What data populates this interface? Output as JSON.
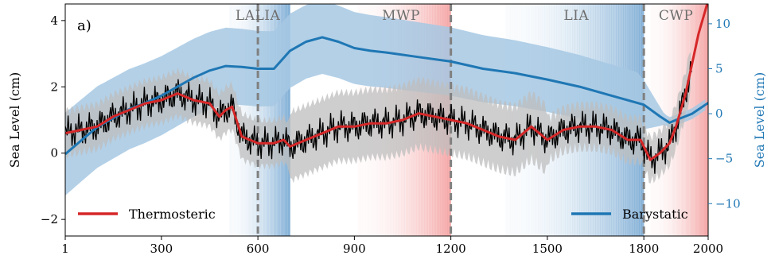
{
  "chart_data": {
    "type": "line",
    "panel_label": "a)",
    "xlabel": "",
    "x_ticks": [
      1,
      300,
      600,
      900,
      1200,
      1500,
      1800,
      2000
    ],
    "xlim": [
      1,
      2000
    ],
    "ylabel": "Sea Level (cm)",
    "ylim": [
      -2.5,
      4.5
    ],
    "y_ticks": [
      -2,
      0,
      2,
      4
    ],
    "y_tick_labels": [
      "−2",
      "0",
      "2",
      "4"
    ],
    "ylabel_right": "Sea Level (cm)",
    "ylim_right": [
      -13.6,
      12.2
    ],
    "y_ticks_right": [
      -10,
      -5,
      0,
      5,
      10
    ],
    "y_tick_labels_right": [
      "−10",
      "−5",
      "0",
      "5",
      "10"
    ],
    "colors": {
      "thermosteric": "#d62728",
      "thermosteric_raw": "#000000",
      "thermosteric_band": "#bdbdbd",
      "barystatic": "#1f77b4",
      "barystatic_band": "#a6c8e3",
      "divider": "#808080",
      "warm_period": "#f08080",
      "cold_period": "#4f8fc6"
    },
    "periods": [
      {
        "name": "LALIA",
        "start": 510,
        "end": 700,
        "kind": "cold"
      },
      {
        "name": "MWP",
        "start": 910,
        "end": 1200,
        "kind": "warm"
      },
      {
        "name": "LIA",
        "start": 1370,
        "end": 1800,
        "kind": "cold"
      },
      {
        "name": "CWP",
        "start": 1820,
        "end": 2000,
        "kind": "warm"
      }
    ],
    "dividers": [
      600,
      1200,
      1800
    ],
    "series": [
      {
        "name": "Thermosteric",
        "axis": "left",
        "x": [
          1,
          50,
          100,
          150,
          200,
          250,
          300,
          350,
          400,
          450,
          480,
          500,
          520,
          550,
          600,
          650,
          680,
          700,
          750,
          800,
          850,
          900,
          950,
          1000,
          1050,
          1100,
          1150,
          1200,
          1250,
          1300,
          1350,
          1400,
          1450,
          1500,
          1550,
          1600,
          1650,
          1700,
          1750,
          1790,
          1820,
          1850,
          1880,
          1900,
          1930,
          1950,
          1970,
          2000
        ],
        "values": [
          0.6,
          0.7,
          0.8,
          1.1,
          1.3,
          1.5,
          1.6,
          1.8,
          1.6,
          1.5,
          1.1,
          1.3,
          1.4,
          0.5,
          0.3,
          0.3,
          0.4,
          0.2,
          0.4,
          0.6,
          0.8,
          0.8,
          0.9,
          0.9,
          1.0,
          1.2,
          1.1,
          1.0,
          0.9,
          0.7,
          0.5,
          0.4,
          0.8,
          0.4,
          0.7,
          0.8,
          0.8,
          0.7,
          0.4,
          0.4,
          -0.2,
          0.0,
          0.3,
          0.8,
          1.8,
          2.7,
          3.6,
          4.6
        ]
      },
      {
        "name": "Barystatic",
        "axis": "right",
        "x": [
          1,
          50,
          100,
          150,
          200,
          250,
          300,
          350,
          400,
          450,
          500,
          550,
          600,
          650,
          700,
          750,
          800,
          850,
          900,
          950,
          1000,
          1100,
          1200,
          1300,
          1400,
          1500,
          1600,
          1700,
          1800,
          1850,
          1880,
          1900,
          1950,
          2000
        ],
        "values": [
          -4.5,
          -3.0,
          -1.5,
          -0.5,
          0.5,
          1.2,
          2.0,
          3.0,
          4.0,
          4.8,
          5.3,
          5.2,
          5.0,
          5.0,
          7.0,
          8.0,
          8.5,
          8.0,
          7.3,
          7.0,
          6.8,
          6.3,
          5.8,
          5.0,
          4.5,
          3.8,
          3.0,
          2.0,
          1.0,
          -0.3,
          -1.0,
          -0.7,
          0.0,
          1.2
        ]
      }
    ],
    "legend": [
      {
        "label": "Thermosteric",
        "placement": "lower-left"
      },
      {
        "label": "Barystatic",
        "placement": "lower-right"
      }
    ]
  }
}
